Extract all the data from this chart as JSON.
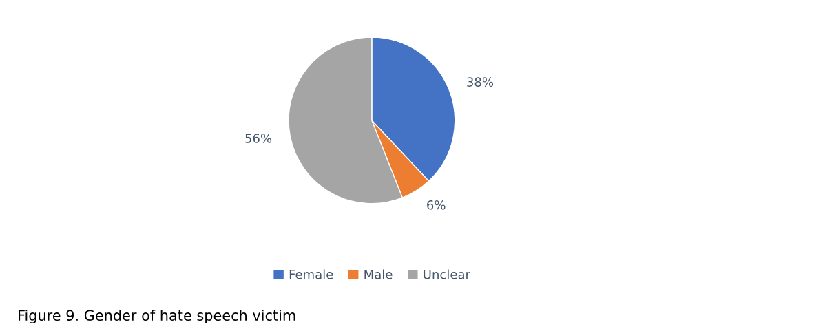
{
  "chart_data": {
    "type": "pie",
    "categories": [
      "Female",
      "Male",
      "Unclear"
    ],
    "values": [
      38,
      6,
      56
    ],
    "colors": [
      "#4472c4",
      "#ed7d31",
      "#a5a5a5"
    ],
    "value_labels": [
      "38%",
      "6%",
      "56%"
    ],
    "legend": "bottom",
    "annotations": [
      "Figure 9. Gender of hate speech victim"
    ]
  }
}
